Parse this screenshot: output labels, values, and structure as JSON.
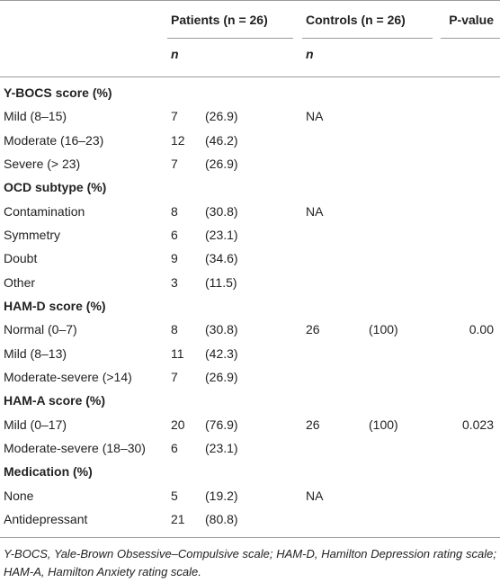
{
  "header": {
    "patients": "Patients (n = 26)",
    "controls": "Controls (n = 26)",
    "p_value": "P-value",
    "n_patients": "n",
    "n_controls": "n"
  },
  "sections": [
    {
      "title": "Y-BOCS score (%)",
      "rows": [
        {
          "label": "Mild (8–15)",
          "n": "7",
          "pct": "(26.9)",
          "controls_n": "NA"
        },
        {
          "label": "Moderate (16–23)",
          "n": "12",
          "pct": "(46.2)"
        },
        {
          "label": "Severe (> 23)",
          "n": "7",
          "pct": "(26.9)"
        }
      ]
    },
    {
      "title": "OCD subtype (%)",
      "rows": [
        {
          "label": "Contamination",
          "n": "8",
          "pct": "(30.8)",
          "controls_n": "NA"
        },
        {
          "label": "Symmetry",
          "n": "6",
          "pct": "(23.1)"
        },
        {
          "label": "Doubt",
          "n": "9",
          "pct": "(34.6)"
        },
        {
          "label": "Other",
          "n": "3",
          "pct": "(11.5)"
        }
      ]
    },
    {
      "title": "HAM-D score (%)",
      "rows": [
        {
          "label": "Normal (0–7)",
          "n": "8",
          "pct": "(30.8)",
          "controls_n": "26",
          "controls_pct": "(100)",
          "p": "0.00"
        },
        {
          "label": "Mild (8–13)",
          "n": "11",
          "pct": "(42.3)"
        },
        {
          "label": "Moderate-severe (>14)",
          "n": "7",
          "pct": "(26.9)"
        }
      ]
    },
    {
      "title": "HAM-A score (%)",
      "rows": [
        {
          "label": "Mild (0–17)",
          "n": "20",
          "pct": "(76.9)",
          "controls_n": "26",
          "controls_pct": "(100)",
          "p": "0.023"
        },
        {
          "label": "Moderate-severe (18–30)",
          "n": "6",
          "pct": "(23.1)"
        }
      ]
    },
    {
      "title": "Medication (%)",
      "rows": [
        {
          "label": "None",
          "n": "5",
          "pct": "(19.2)",
          "controls_n": "NA"
        },
        {
          "label": "Antidepressant",
          "n": "21",
          "pct": "(80.8)"
        }
      ]
    }
  ],
  "footnote": "Y-BOCS, Yale-Brown Obsessive–Compulsive scale; HAM-D, Hamilton Depression rating scale; HAM-A, Hamilton Anxiety rating scale."
}
